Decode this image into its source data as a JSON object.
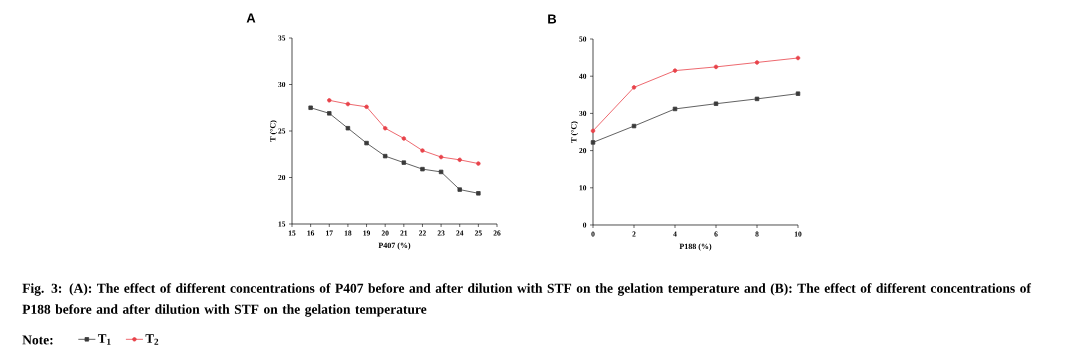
{
  "chart_data": [
    {
      "type": "line",
      "title": "A",
      "xlabel": "P407 (%)",
      "ylabel": "T (°C)",
      "xlim": [
        15,
        26
      ],
      "xticks": [
        15,
        16,
        17,
        18,
        19,
        20,
        21,
        22,
        23,
        24,
        25,
        26
      ],
      "ylim": [
        15,
        35
      ],
      "yticks": [
        15,
        20,
        25,
        30,
        35
      ],
      "grid": false,
      "legend": "bottom",
      "annotations": [
        "Fig. 3: (A): The effect of different concentrations of P407 before and after dilution with STF on the gelation temperature and (B): The effect of different concentrations of P188 before and after dilution with STF on the gelation temperature",
        "Note:"
      ],
      "series": [
        {
          "name": "T$_{1}$",
          "color": "#3a3a3a",
          "marker": "square",
          "x": [
            16,
            17,
            18,
            19,
            20,
            21,
            22,
            23,
            24,
            25
          ],
          "values": [
            27.5,
            26.9,
            25.3,
            23.7,
            22.3,
            21.6,
            20.9,
            20.6,
            18.7,
            18.3
          ]
        },
        {
          "name": "T$_{2}$",
          "color": "#e8434a",
          "marker": "circle",
          "x": [
            17,
            18,
            19,
            20,
            21,
            22,
            23,
            24,
            25
          ],
          "values": [
            28.3,
            27.9,
            27.6,
            25.3,
            24.2,
            22.9,
            22.2,
            21.9,
            21.5
          ]
        }
      ]
    },
    {
      "type": "line",
      "title": "B",
      "xlabel": "P188 (%)",
      "ylabel": "T (°C)",
      "xlim": [
        0,
        10
      ],
      "xticks": [
        0,
        2,
        4,
        6,
        8,
        10
      ],
      "ylim": [
        0,
        50
      ],
      "yticks": [
        0,
        10,
        20,
        30,
        40,
        50
      ],
      "grid": false,
      "series": [
        {
          "color": "#3a3a3a",
          "marker": "square",
          "x": [
            0,
            2,
            4,
            6,
            8,
            10
          ],
          "values": [
            22.2,
            26.6,
            31.2,
            32.6,
            33.9,
            35.3
          ]
        },
        {
          "color": "#e8434a",
          "marker": "circle",
          "x": [
            0,
            2,
            4,
            6,
            8,
            10
          ],
          "values": [
            25.3,
            37.0,
            41.5,
            42.5,
            43.7,
            44.9
          ]
        }
      ]
    }
  ]
}
